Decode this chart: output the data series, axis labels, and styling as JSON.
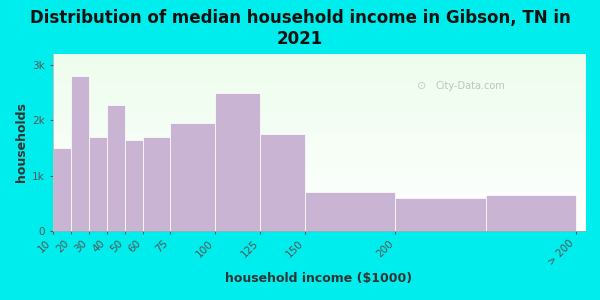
{
  "title": "Distribution of median household income in Gibson, TN in\n2021",
  "xlabel": "household income ($1000)",
  "ylabel": "households",
  "bar_left_edges": [
    10,
    20,
    30,
    40,
    50,
    60,
    75,
    100,
    125,
    150,
    200,
    250
  ],
  "bar_widths": [
    10,
    10,
    10,
    10,
    10,
    15,
    25,
    25,
    25,
    50,
    50,
    50
  ],
  "bar_heights": [
    1500,
    2800,
    1700,
    2280,
    1650,
    1700,
    1950,
    2500,
    1750,
    700,
    600,
    650
  ],
  "bar_color": "#c9b4d4",
  "bar_edgecolor": "#ffffff",
  "background_color": "#00eded",
  "plot_bg_color": "#f0fff0",
  "ylim": [
    0,
    3200
  ],
  "yticks": [
    0,
    1000,
    2000,
    3000
  ],
  "ytick_labels": [
    "0",
    "1k",
    "2k",
    "3k"
  ],
  "xtick_positions": [
    10,
    20,
    30,
    40,
    50,
    60,
    75,
    100,
    125,
    150,
    200,
    300
  ],
  "xtick_labels": [
    "10",
    "20",
    "30",
    "40",
    "50",
    "60",
    "75",
    "100",
    "125",
    "150",
    "200",
    "> 200"
  ],
  "xlim": [
    10,
    305
  ],
  "title_fontsize": 12,
  "axis_label_fontsize": 9,
  "tick_fontsize": 7.5,
  "watermark": "City-Data.com"
}
